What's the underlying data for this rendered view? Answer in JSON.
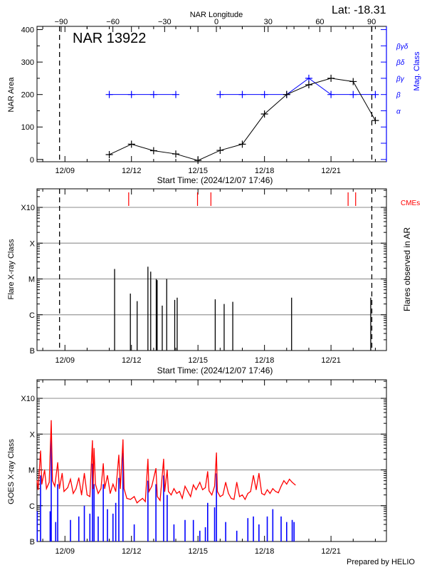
{
  "footer": {
    "prepared_by": "Prepared by HELIO"
  },
  "colors": {
    "nar_area": "#000000",
    "mag_class": "#0000ff",
    "cme": "#ff0000",
    "goes_long": "#ff0000",
    "goes_short": "#0000ff",
    "grid": "#999999"
  },
  "chart_data": [
    {
      "type": "line",
      "title": "NAR 13922",
      "latitude_label": "Lat: -18.31",
      "xlabel": "Start Time: (2024/12/07 17:46)",
      "ylabel": "NAR Area",
      "y2label": "Mag. Class",
      "top_axis_label": "NAR Longitude",
      "xlim": [
        "2024-12-07T17:46",
        "2024-12-23T12:00"
      ],
      "ylim": [
        -7,
        410
      ],
      "top_axis_range": [
        -104,
        98.6
      ],
      "x_tick_labels": [
        "12/09",
        "12/12",
        "12/15",
        "12/18",
        "12/21"
      ],
      "y_tick_labels": [
        "0",
        "100",
        "200",
        "300",
        "400"
      ],
      "top_tick_labels": [
        "-90",
        "-60",
        "-30",
        "0",
        "30",
        "60",
        "90"
      ],
      "mag_class_levels": [
        {
          "label": "α",
          "area": 150
        },
        {
          "label": "β",
          "area": 200
        },
        {
          "label": "βγ",
          "area": 250
        },
        {
          "label": "βδ",
          "area": 300
        },
        {
          "label": "βγδ",
          "area": 350
        }
      ],
      "limb_crossings": [
        "2024-12-08T18:10",
        "2024-12-22T20:10"
      ],
      "series": [
        {
          "name": "NAR Area",
          "x": [
            "2024-12-11",
            "2024-12-12",
            "2024-12-13",
            "2024-12-14",
            "2024-12-15",
            "2024-12-16",
            "2024-12-17",
            "2024-12-18",
            "2024-12-19",
            "2024-12-20",
            "2024-12-21",
            "2024-12-22",
            "2024-12-23"
          ],
          "values": [
            15,
            47,
            27,
            17,
            -3,
            28,
            47,
            140,
            200,
            230,
            250,
            240,
            120
          ]
        },
        {
          "name": "Mag. Class",
          "x": [
            "2024-12-11",
            "2024-12-12",
            "2024-12-13",
            "2024-12-14",
            "2024-12-16",
            "2024-12-17",
            "2024-12-18",
            "2024-12-19",
            "2024-12-20",
            "2024-12-21",
            "2024-12-22",
            "2024-12-23"
          ],
          "values": [
            "β",
            "β",
            "β",
            "β",
            "β",
            "β",
            "β",
            "β",
            "βγ",
            "β",
            "β",
            "β"
          ]
        }
      ]
    },
    {
      "type": "bar",
      "xlabel": "Start Time: (2024/12/07 17:46)",
      "ylabel": "Flare X-ray Class",
      "y2label": "Flares observed in AR",
      "cme_label": "CMEs",
      "xlim": [
        "2024-12-07T17:46",
        "2024-12-23T12:00"
      ],
      "ylim": [
        1e-07,
        0.0033
      ],
      "y_scale": "log",
      "grid": true,
      "x_tick_labels": [
        "12/09",
        "12/12",
        "12/15",
        "12/18",
        "12/21"
      ],
      "y_tick_labels": [
        {
          "label": "B",
          "flux": 1e-07
        },
        {
          "label": "C",
          "flux": 1e-06
        },
        {
          "label": "M",
          "flux": 1e-05
        },
        {
          "label": "X",
          "flux": 0.0001
        },
        {
          "label": "X10",
          "flux": 0.001
        }
      ],
      "limb_crossings": [
        "2024-12-08T18:10",
        "2024-12-22T20:10"
      ],
      "flares": [
        [
          "2024-12-11T05:45",
          1.9e-05
        ],
        [
          "2024-12-11T22:50",
          3.9e-06
        ],
        [
          "2024-12-12T06:10",
          2.4e-06
        ],
        [
          "2024-12-12T17:50",
          2.2e-05
        ],
        [
          "2024-12-12T20:50",
          1.6e-05
        ],
        [
          "2024-12-13T02:50",
          1e-05
        ],
        [
          "2024-12-13T03:50",
          9.3e-06
        ],
        [
          "2024-12-13T09:20",
          1.8e-06
        ],
        [
          "2024-12-13T14:10",
          1e-05
        ],
        [
          "2024-12-13T22:50",
          2.6e-06
        ],
        [
          "2024-12-14T01:30",
          3e-06
        ],
        [
          "2024-12-15T18:40",
          2.7e-06
        ],
        [
          "2024-12-16T04:20",
          2e-06
        ],
        [
          "2024-12-16T13:40",
          2.3e-06
        ],
        [
          "2024-12-19T05:20",
          3e-06
        ],
        [
          "2024-12-22T19:00",
          3e-06
        ]
      ],
      "cmes": [
        "2024-12-11T21:00",
        "2024-12-14T23:30",
        "2024-12-15T14:00",
        "2024-12-21T18:30",
        "2024-12-22T02:40"
      ]
    },
    {
      "type": "line",
      "xlabel": "",
      "ylabel": "GOES X-ray Class",
      "xlim": [
        "2024-12-07T17:46",
        "2024-12-23T12:00"
      ],
      "ylim": [
        1e-07,
        0.0033
      ],
      "y_scale": "log",
      "grid": true,
      "x_tick_labels": [
        "12/09",
        "12/12",
        "12/15",
        "12/18",
        "12/21"
      ],
      "y_tick_labels": [
        {
          "label": "B",
          "flux": 1e-07
        },
        {
          "label": "C",
          "flux": 1e-06
        },
        {
          "label": "M",
          "flux": 1e-05
        },
        {
          "label": "X",
          "flux": 0.0001
        },
        {
          "label": "X10",
          "flux": 0.001
        }
      ],
      "series": [
        {
          "channel": "long",
          "points": [
            [
              "2024-12-07T17:46",
              5e-06
            ],
            [
              "2024-12-07T19:00",
              2.8e-06
            ],
            [
              "2024-12-07T21:36",
              3.4e-05
            ],
            [
              "2024-12-07T23:00",
              4e-06
            ],
            [
              "2024-12-08T02:00",
              1e-05
            ],
            [
              "2024-12-08T04:00",
              3e-06
            ],
            [
              "2024-12-08T07:00",
              4.5e-06
            ],
            [
              "2024-12-08T09:10",
              0.00024
            ],
            [
              "2024-12-08T10:30",
              5e-06
            ],
            [
              "2024-12-08T13:00",
              3.5e-06
            ],
            [
              "2024-12-08T16:10",
              1.6e-05
            ],
            [
              "2024-12-08T18:00",
              3e-06
            ],
            [
              "2024-12-08T21:00",
              8e-06
            ],
            [
              "2024-12-08T23:00",
              2.5e-06
            ],
            [
              "2024-12-09T03:00",
              3.2e-06
            ],
            [
              "2024-12-09T06:00",
              5.5e-06
            ],
            [
              "2024-12-09T09:00",
              2.2e-06
            ],
            [
              "2024-12-09T12:00",
              3e-06
            ],
            [
              "2024-12-09T15:00",
              6e-06
            ],
            [
              "2024-12-09T18:00",
              2e-06
            ],
            [
              "2024-12-09T21:00",
              8e-06
            ],
            [
              "2024-12-10T00:00",
              2e-06
            ],
            [
              "2024-12-10T03:00",
              1.8e-06
            ],
            [
              "2024-12-10T05:46",
              6.6e-05
            ],
            [
              "2024-12-10T06:30",
              3e-06
            ],
            [
              "2024-12-10T07:30",
              4e-05
            ],
            [
              "2024-12-10T09:00",
              4e-06
            ],
            [
              "2024-12-10T12:00",
              2.2e-06
            ],
            [
              "2024-12-10T15:00",
              3e-06
            ],
            [
              "2024-12-10T17:30",
              1.5e-05
            ],
            [
              "2024-12-10T19:00",
              3e-06
            ],
            [
              "2024-12-10T22:00",
              7e-06
            ],
            [
              "2024-12-11T01:00",
              2.2e-06
            ],
            [
              "2024-12-11T04:00",
              4e-06
            ],
            [
              "2024-12-11T07:00",
              2.5e-06
            ],
            [
              "2024-12-11T10:20",
              2.6e-05
            ],
            [
              "2024-12-11T12:00",
              3e-06
            ],
            [
              "2024-12-11T14:50",
              7e-05
            ],
            [
              "2024-12-11T16:00",
              3e-06
            ],
            [
              "2024-12-11T19:00",
              1.6e-06
            ],
            [
              "2024-12-11T23:00",
              1.5e-06
            ],
            [
              "2024-12-12T03:00",
              1.8e-06
            ],
            [
              "2024-12-12T06:00",
              1.2e-06
            ],
            [
              "2024-12-12T09:00",
              1.4e-06
            ],
            [
              "2024-12-12T12:00",
              1.6e-06
            ],
            [
              "2024-12-12T15:00",
              1.3e-06
            ],
            [
              "2024-12-12T17:50",
              2e-05
            ],
            [
              "2024-12-12T19:00",
              2.5e-06
            ],
            [
              "2024-12-12T22:00",
              3.5e-06
            ],
            [
              "2024-12-13T02:30",
              1.1e-05
            ],
            [
              "2024-12-13T04:00",
              1.8e-06
            ],
            [
              "2024-12-13T07:00",
              1.4e-06
            ],
            [
              "2024-12-13T10:50",
              2e-05
            ],
            [
              "2024-12-13T12:00",
              2.5e-06
            ],
            [
              "2024-12-13T14:40",
              1e-05
            ],
            [
              "2024-12-13T16:00",
              2.5e-06
            ],
            [
              "2024-12-13T19:00",
              2e-06
            ],
            [
              "2024-12-13T22:00",
              3e-06
            ],
            [
              "2024-12-14T01:00",
              2.2e-06
            ],
            [
              "2024-12-14T04:00",
              2.5e-06
            ],
            [
              "2024-12-14T07:00",
              1.6e-06
            ],
            [
              "2024-12-14T10:00",
              3.5e-06
            ],
            [
              "2024-12-14T13:00",
              2.5e-06
            ],
            [
              "2024-12-14T16:00",
              1.8e-06
            ],
            [
              "2024-12-14T19:00",
              3.8e-06
            ],
            [
              "2024-12-14T22:00",
              2.8e-06
            ],
            [
              "2024-12-15T02:00",
              4.5e-06
            ],
            [
              "2024-12-15T05:00",
              2.8e-06
            ],
            [
              "2024-12-15T08:00",
              3.2e-06
            ],
            [
              "2024-12-15T10:30",
              9e-06
            ],
            [
              "2024-12-15T12:00",
              2.6e-06
            ],
            [
              "2024-12-15T15:00",
              2e-06
            ],
            [
              "2024-12-15T18:00",
              3.5e-06
            ],
            [
              "2024-12-15T20:00",
              3e-05
            ],
            [
              "2024-12-15T21:00",
              2.5e-06
            ],
            [
              "2024-12-16T00:00",
              1.8e-06
            ],
            [
              "2024-12-16T03:00",
              2e-06
            ],
            [
              "2024-12-16T06:00",
              4.5e-06
            ],
            [
              "2024-12-16T09:00",
              2.2e-06
            ],
            [
              "2024-12-16T12:00",
              1.6e-06
            ],
            [
              "2024-12-16T15:00",
              1.5e-06
            ],
            [
              "2024-12-16T18:00",
              4.5e-06
            ],
            [
              "2024-12-16T21:00",
              1.8e-06
            ],
            [
              "2024-12-17T00:00",
              2e-06
            ],
            [
              "2024-12-17T03:00",
              1.5e-06
            ],
            [
              "2024-12-17T06:00",
              2.2e-06
            ],
            [
              "2024-12-17T09:00",
              2.5e-06
            ],
            [
              "2024-12-17T12:00",
              7e-06
            ],
            [
              "2024-12-17T15:00",
              2.8e-06
            ],
            [
              "2024-12-17T18:00",
              8e-06
            ],
            [
              "2024-12-17T21:00",
              2.2e-06
            ],
            [
              "2024-12-18T00:00",
              2e-06
            ],
            [
              "2024-12-18T03:00",
              2.8e-06
            ],
            [
              "2024-12-18T06:00",
              2.2e-06
            ],
            [
              "2024-12-18T09:00",
              3e-06
            ],
            [
              "2024-12-18T12:00",
              2.5e-06
            ],
            [
              "2024-12-18T15:00",
              2.3e-06
            ],
            [
              "2024-12-18T18:00",
              3.5e-06
            ],
            [
              "2024-12-18T21:00",
              5e-06
            ],
            [
              "2024-12-19T00:00",
              4e-06
            ],
            [
              "2024-12-19T03:00",
              5.5e-06
            ],
            [
              "2024-12-19T06:00",
              4.5e-06
            ],
            [
              "2024-12-19T09:20",
              3.8e-06
            ]
          ]
        },
        {
          "channel": "short",
          "points": [
            [
              "2024-12-07T18:00",
              7e-07
            ],
            [
              "2024-12-07T21:36",
              7e-06
            ],
            [
              "2024-12-08T08:00",
              7e-07
            ],
            [
              "2024-12-08T09:10",
              8e-05
            ],
            [
              "2024-12-08T14:00",
              3.5e-07
            ],
            [
              "2024-12-08T16:10",
              4e-06
            ],
            [
              "2024-12-09T06:00",
              4e-07
            ],
            [
              "2024-12-09T15:00",
              5e-07
            ],
            [
              "2024-12-09T21:00",
              1e-06
            ],
            [
              "2024-12-10T03:00",
              6e-07
            ],
            [
              "2024-12-10T05:46",
              1.5e-05
            ],
            [
              "2024-12-10T07:30",
              4e-06
            ],
            [
              "2024-12-10T12:00",
              5e-07
            ],
            [
              "2024-12-10T17:30",
              4e-06
            ],
            [
              "2024-12-10T22:00",
              8e-07
            ],
            [
              "2024-12-11T04:00",
              6e-07
            ],
            [
              "2024-12-11T07:00",
              1.2e-06
            ],
            [
              "2024-12-11T10:20",
              6e-06
            ],
            [
              "2024-12-11T14:50",
              3e-05
            ],
            [
              "2024-12-12T03:00",
              3e-07
            ],
            [
              "2024-12-12T17:50",
              5e-06
            ],
            [
              "2024-12-13T02:30",
              4e-06
            ],
            [
              "2024-12-13T10:50",
              7e-06
            ],
            [
              "2024-12-13T14:40",
              2e-06
            ],
            [
              "2024-12-13T22:00",
              3e-07
            ],
            [
              "2024-12-14T10:00",
              4e-07
            ],
            [
              "2024-12-14T19:00",
              4e-07
            ],
            [
              "2024-12-15T02:00",
              2e-07
            ],
            [
              "2024-12-15T08:00",
              2.5e-07
            ],
            [
              "2024-12-15T10:30",
              1.2e-06
            ],
            [
              "2024-12-15T18:00",
              9e-07
            ],
            [
              "2024-12-15T20:00",
              8e-06
            ],
            [
              "2024-12-16T06:00",
              3.5e-07
            ],
            [
              "2024-12-16T18:00",
              2e-07
            ],
            [
              "2024-12-17T06:00",
              4.5e-07
            ],
            [
              "2024-12-17T12:00",
              5e-07
            ],
            [
              "2024-12-17T18:00",
              3e-07
            ],
            [
              "2024-12-18T03:00",
              5e-07
            ],
            [
              "2024-12-18T09:00",
              8e-07
            ],
            [
              "2024-12-18T18:00",
              5e-07
            ],
            [
              "2024-12-19T00:00",
              3.5e-07
            ],
            [
              "2024-12-19T06:00",
              4e-07
            ],
            [
              "2024-12-19T08:00",
              3.5e-07
            ]
          ]
        }
      ]
    }
  ]
}
